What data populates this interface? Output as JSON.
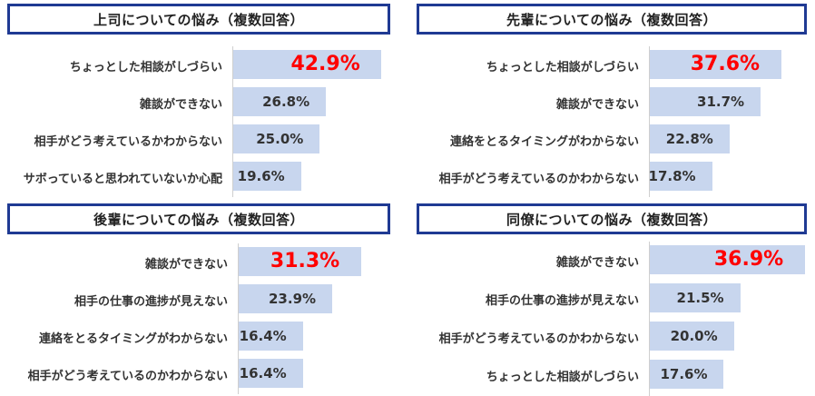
{
  "chart_data": [
    {
      "type": "bar",
      "orientation": "horizontal",
      "title": "上司についての悩み（複数回答）",
      "categories": [
        "ちょっとした相談がしづらい",
        "雑談ができない",
        "相手がどう考えているかわからない",
        "サボっていると思われていないか心配"
      ],
      "values": [
        42.9,
        26.8,
        25.0,
        19.6
      ],
      "value_labels": [
        "42.9%",
        "26.8%",
        "25.0%",
        "19.6%"
      ],
      "highlight_index": 0
    },
    {
      "type": "bar",
      "orientation": "horizontal",
      "title": "先輩についての悩み（複数回答）",
      "categories": [
        "ちょっとした相談がしづらい",
        "雑談ができない",
        "連絡をとるタイミングがわからない",
        "相手がどう考えているのかわからない"
      ],
      "values": [
        37.6,
        31.7,
        22.8,
        17.8
      ],
      "value_labels": [
        "37.6%",
        "31.7%",
        "22.8%",
        "17.8%"
      ],
      "highlight_index": 0
    },
    {
      "type": "bar",
      "orientation": "horizontal",
      "title": "後輩についての悩み（複数回答）",
      "categories": [
        "雑談ができない",
        "相手の仕事の進捗が見えない",
        "連絡をとるタイミングがわからない",
        "相手がどう考えているのかわからない"
      ],
      "values": [
        31.3,
        23.9,
        16.4,
        16.4
      ],
      "value_labels": [
        "31.3%",
        "23.9%",
        "16.4%",
        "16.4%"
      ],
      "highlight_index": 0
    },
    {
      "type": "bar",
      "orientation": "horizontal",
      "title": "同僚についての悩み（複数回答）",
      "categories": [
        "雑談ができない",
        "相手の仕事の進捗が見えない",
        "相手がどう考えているのかわからない",
        "ちょっとした相談がしづらい"
      ],
      "values": [
        36.9,
        21.5,
        20.0,
        17.6
      ],
      "value_labels": [
        "36.9%",
        "21.5%",
        "20.0%",
        "17.6%"
      ],
      "highlight_index": 0
    }
  ],
  "colors": {
    "bar": "#c8d6ee",
    "title_border": "#1f3a93",
    "highlight_text": "#ff0000",
    "text": "#333333"
  }
}
